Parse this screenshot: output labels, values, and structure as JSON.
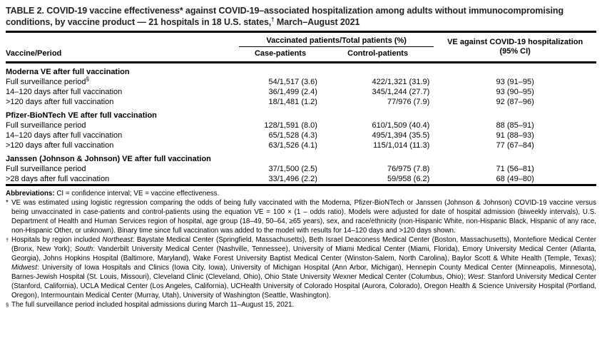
{
  "title": {
    "pre": "TABLE 2. COVID-19 vaccine effectiveness* against COVID-19–associated hospitalization among adults without immunocompromising conditions, by vaccine product — 21 hospitals in 18 U.S. states,",
    "sup": "†",
    "post": " March–August 2021"
  },
  "table": {
    "col_headers": {
      "vaccine_period": "Vaccine/Period",
      "vaccinated_span": "Vaccinated patients/Total patients (%)",
      "case": "Case-patients",
      "control": "Control-patients",
      "ve_line1": "VE against COVID-19 hospitalization",
      "ve_line2": "(95% CI)"
    },
    "sections": [
      {
        "header": "Moderna VE after full vaccination",
        "rows": [
          {
            "label": "Full surveillance period",
            "label_sup": "§",
            "case": "54/1,517 (3.6)",
            "control": "422/1,321 (31.9)",
            "ve": "93 (91–95)"
          },
          {
            "label": "14–120 days after full vaccination",
            "case": "36/1,499 (2.4)",
            "control": "345/1,244 (27.7)",
            "ve": "93 (90–95)"
          },
          {
            "label": ">120 days after full vaccination",
            "case": "18/1,481 (1.2)",
            "control": "77/976 (7.9)",
            "ve": "92 (87–96)"
          }
        ]
      },
      {
        "header": "Pfizer-BioNTech VE after full vaccination",
        "rows": [
          {
            "label": "Full surveillance period",
            "case": "128/1,591 (8.0)",
            "control": "610/1,509 (40.4)",
            "ve": "88 (85–91)"
          },
          {
            "label": "14–120 days after full vaccination",
            "case": "65/1,528 (4.3)",
            "control": "495/1,394 (35.5)",
            "ve": "91 (88–93)"
          },
          {
            "label": ">120 days after full vaccination",
            "case": "63/1,526 (4.1)",
            "control": "115/1,014 (11.3)",
            "ve": "77 (67–84)"
          }
        ]
      },
      {
        "header": "Janssen (Johnson & Johnson) VE after full vaccination",
        "rows": [
          {
            "label": "Full surveillance period",
            "case": "37/1,500 (2.5)",
            "control": "76/975 (7.8)",
            "ve": "71 (56–81)"
          },
          {
            "label": ">28 days after full vaccination",
            "case": "33/1,496 (2.2)",
            "control": "59/958 (6.2)",
            "ve": "68 (49–80)"
          }
        ]
      }
    ]
  },
  "footnotes": {
    "abbreviations": {
      "segments": [
        {
          "t": "Abbreviations:",
          "b": true
        },
        {
          "t": " CI = confidence interval; VE = vaccine effectiveness."
        }
      ]
    },
    "asterisk": {
      "marker": "*",
      "text": "VE was estimated using logistic regression comparing the odds of being fully vaccinated with the Moderna, Pfizer-BioNTech or Janssen (Johnson & Johnson) COVID-19 vaccine versus being unvaccinated in case-patients and control-patients using the equation VE = 100 × (1 – odds ratio). Models were adjusted for date of hospital admission (biweekly intervals), U.S. Department of Health and Human Services region of hospital, age group (18–49, 50–64, ≥65 years), sex, and race/ethnicity (non-Hispanic White, non-Hispanic Black, Hispanic of any race, non-Hispanic Other, or unknown). Binary time since full vaccination was added to the model with results for 14–120 days and >120 days shown."
    },
    "dagger": {
      "marker": "†",
      "segments": [
        {
          "t": "Hospitals by region included "
        },
        {
          "t": "Northeast",
          "i": true
        },
        {
          "t": ": Baystate Medical Center (Springfield, Massachusetts), Beth Israel Deaconess Medical Center (Boston, Massachusetts), Montefiore Medical Center (Bronx, New York); "
        },
        {
          "t": "South",
          "i": true
        },
        {
          "t": ": Vanderbilt University Medical Center (Nashville, Tennessee), University of Miami Medical Center (Miami, Florida), Emory University Medical Center (Atlanta, Georgia), Johns Hopkins Hospital (Baltimore, Maryland), Wake Forest University Baptist Medical Center (Winston-Salem, North Carolina), Baylor Scott & White Health (Temple, Texas); "
        },
        {
          "t": "Midwest",
          "i": true
        },
        {
          "t": ": University of Iowa Hospitals and Clinics (Iowa City, Iowa), University of Michigan Hospital (Ann Arbor, Michigan), Hennepin County Medical Center (Minneapolis, Minnesota), Barnes-Jewish Hospital (St. Louis, Missouri), Cleveland Clinic (Cleveland, Ohio), Ohio State University Wexner Medical Center (Columbus, Ohio); "
        },
        {
          "t": "West",
          "i": true
        },
        {
          "t": ": Stanford University Medical Center (Stanford, California), UCLA Medical Center (Los Angeles, California), UCHealth University of Colorado Hospital (Aurora, Colorado), Oregon Health & Science University Hospital (Portland, Oregon), Intermountain Medical Center (Murray, Utah), University of Washington (Seattle, Washington)."
        }
      ]
    },
    "section": {
      "marker": "§",
      "text": "The full surveillance period included hospital admissions during March 11–August 15, 2021."
    }
  },
  "colors": {
    "background": "#ffffff",
    "text": "#000000",
    "title_text": "#1f2126",
    "rule": "#000000"
  }
}
